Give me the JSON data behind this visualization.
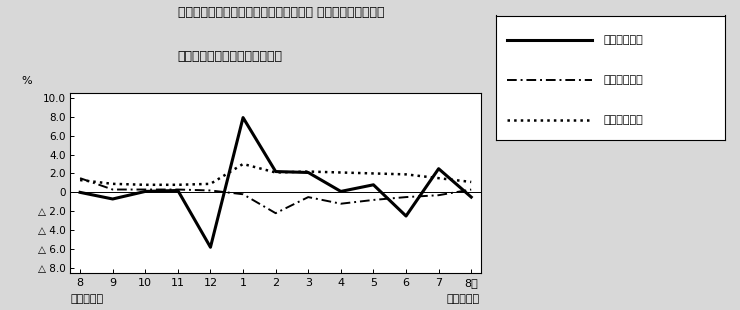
{
  "title_line1": "第４図　賃金、労働時間、常用雇用指数 対前年同月比の推移",
  "title_line2": "（規模５人以上　調査産業計）",
  "x_labels": [
    "8",
    "9",
    "10",
    "11",
    "12",
    "1",
    "2",
    "3",
    "4",
    "5",
    "6",
    "7",
    "8月"
  ],
  "x_bottom_left": "平成２２年",
  "x_bottom_right": "平成２３年",
  "ylabel": "%",
  "ylim": [
    -8.5,
    10.5
  ],
  "yticks": [
    10.0,
    8.0,
    6.0,
    4.0,
    2.0,
    0.0,
    -2.0,
    -4.0,
    -6.0,
    -8.0
  ],
  "ytick_labels": [
    "10.0",
    "8.0",
    "6.0",
    "4.0",
    "2.0",
    "0",
    "△ 2.0",
    "△ 4.0",
    "△ 6.0",
    "△ 8.0"
  ],
  "series": {
    "genkin": {
      "label": "現金給与総額",
      "linestyle": "solid",
      "linewidth": 2.2,
      "color": "#000000",
      "values": [
        0.0,
        -0.7,
        0.1,
        0.2,
        -5.8,
        7.9,
        2.2,
        2.1,
        0.1,
        0.8,
        -2.5,
        2.5,
        -0.5
      ]
    },
    "rodo": {
      "label": "総実労働時間",
      "linestyle": "dashdot",
      "linewidth": 1.4,
      "color": "#000000",
      "values": [
        1.5,
        0.3,
        0.3,
        0.3,
        0.2,
        -0.2,
        -2.2,
        -0.5,
        -1.2,
        -0.8,
        -0.5,
        -0.3,
        0.3
      ]
    },
    "koyo": {
      "label": "常用雇用指数",
      "linestyle": "dotted",
      "linewidth": 1.8,
      "color": "#000000",
      "values": [
        1.3,
        0.9,
        0.8,
        0.8,
        0.9,
        3.0,
        2.1,
        2.2,
        2.1,
        2.0,
        1.9,
        1.5,
        1.1
      ]
    }
  },
  "background_color": "#d8d8d8",
  "plot_bg_color": "#ffffff"
}
